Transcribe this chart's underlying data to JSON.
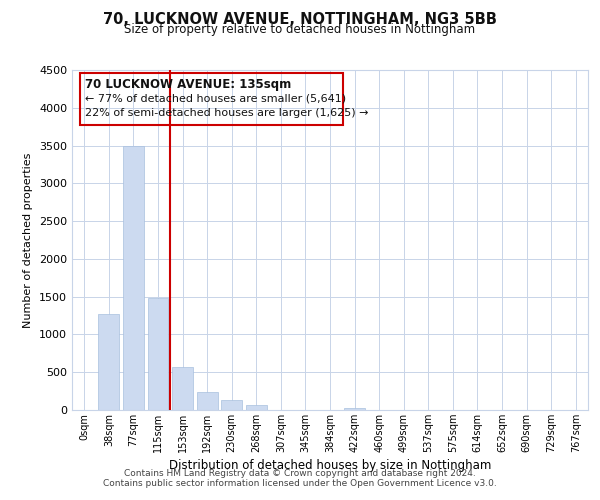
{
  "title": "70, LUCKNOW AVENUE, NOTTINGHAM, NG3 5BB",
  "subtitle": "Size of property relative to detached houses in Nottingham",
  "xlabel": "Distribution of detached houses by size in Nottingham",
  "ylabel": "Number of detached properties",
  "bar_labels": [
    "0sqm",
    "38sqm",
    "77sqm",
    "115sqm",
    "153sqm",
    "192sqm",
    "230sqm",
    "268sqm",
    "307sqm",
    "345sqm",
    "384sqm",
    "422sqm",
    "460sqm",
    "499sqm",
    "537sqm",
    "575sqm",
    "614sqm",
    "652sqm",
    "690sqm",
    "729sqm",
    "767sqm"
  ],
  "bar_values": [
    0,
    1270,
    3500,
    1480,
    570,
    240,
    130,
    70,
    0,
    0,
    0,
    25,
    0,
    0,
    0,
    0,
    0,
    0,
    0,
    0,
    0
  ],
  "bar_color": "#ccdaf0",
  "bar_edge_color": "#a8c0de",
  "vline_color": "#cc0000",
  "ylim": [
    0,
    4500
  ],
  "yticks": [
    0,
    500,
    1000,
    1500,
    2000,
    2500,
    3000,
    3500,
    4000,
    4500
  ],
  "annotation_title": "70 LUCKNOW AVENUE: 135sqm",
  "annotation_line1": "← 77% of detached houses are smaller (5,641)",
  "annotation_line2": "22% of semi-detached houses are larger (1,625) →",
  "annotation_box_color": "#cc0000",
  "footer_line1": "Contains HM Land Registry data © Crown copyright and database right 2024.",
  "footer_line2": "Contains public sector information licensed under the Open Government Licence v3.0.",
  "background_color": "#ffffff",
  "grid_color": "#c8d4e8",
  "title_fontsize": 10.5,
  "subtitle_fontsize": 8.5
}
